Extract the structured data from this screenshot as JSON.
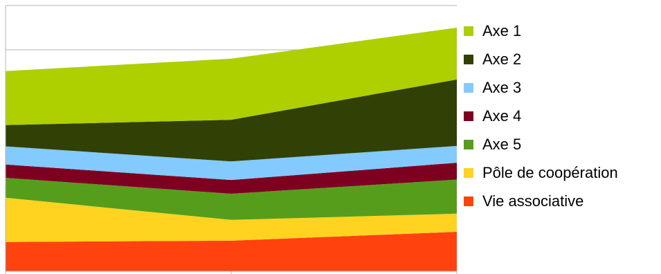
{
  "chart_data": {
    "type": "stacked-area",
    "categories": [
      null,
      null,
      null
    ],
    "series": [
      {
        "name": "Axe 1",
        "color": "#aecf00",
        "values": [
          1.22,
          1.38,
          1.17
        ]
      },
      {
        "name": "Axe 2",
        "color": "#314004",
        "values": [
          0.48,
          0.94,
          1.5
        ]
      },
      {
        "name": "Axe 3",
        "color": "#83caff",
        "values": [
          0.41,
          0.42,
          0.38
        ]
      },
      {
        "name": "Axe 4",
        "color": "#7e0021",
        "values": [
          0.3,
          0.31,
          0.38
        ]
      },
      {
        "name": "Axe 5",
        "color": "#579d1c",
        "values": [
          0.45,
          0.59,
          0.77
        ]
      },
      {
        "name": "Pôle de coopération",
        "color": "#ffd320",
        "values": [
          1.0,
          0.47,
          0.41
        ]
      },
      {
        "name": "Vie associative",
        "color": "#ff420e",
        "values": [
          0.66,
          0.69,
          0.89
        ]
      }
    ],
    "ylim": [
      0,
      6
    ],
    "yticks": [
      0,
      1,
      2,
      3,
      4,
      5,
      6
    ],
    "grid": true,
    "legend": "right"
  }
}
